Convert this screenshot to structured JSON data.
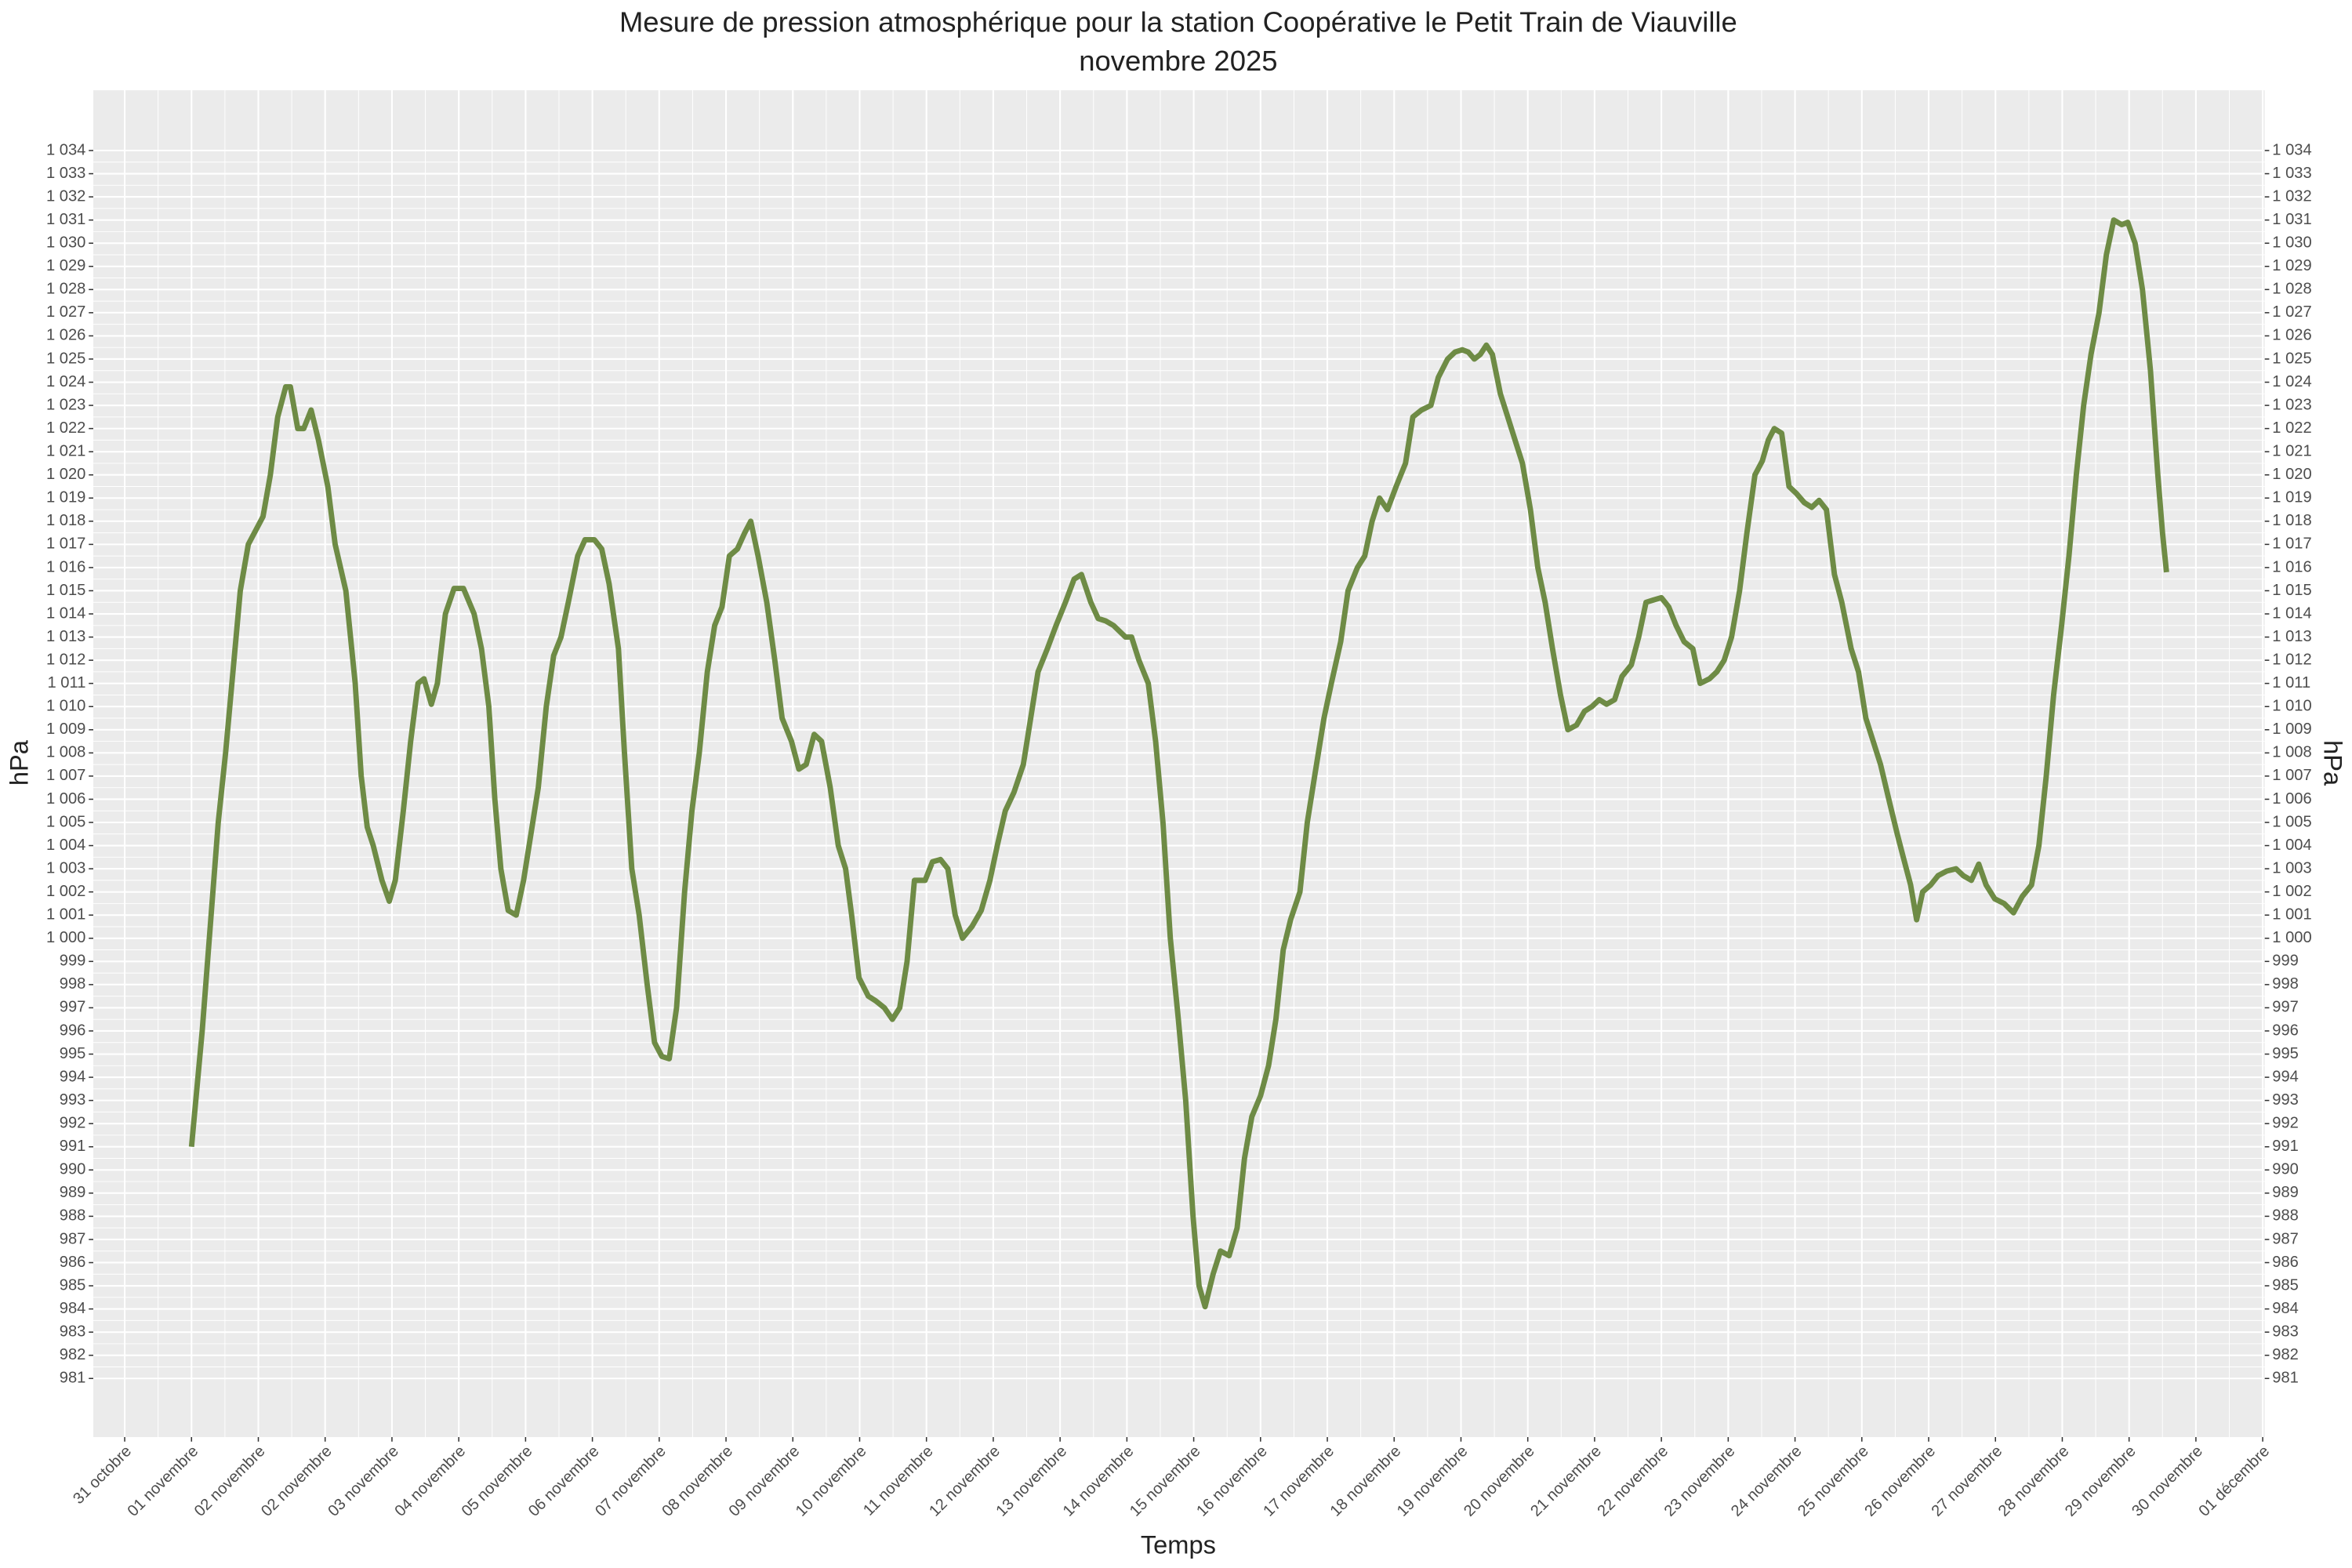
{
  "chart_data": {
    "type": "line",
    "title": "Mesure de pression atmosphérique pour la station Coopérative le Petit Train de Viauville",
    "subtitle": "novembre 2025",
    "xlabel": "Temps",
    "ylabel": "hPa",
    "y2label": "hPa",
    "color": "#6e8b45",
    "grid": true,
    "xlim": [
      -0.47,
      32.03
    ],
    "ylim": [
      978.47,
      1036.6
    ],
    "xticks": [
      {
        "value": 0,
        "label": "31 octobre"
      },
      {
        "value": 1,
        "label": "01 novembre"
      },
      {
        "value": 2,
        "label": "02 novembre"
      },
      {
        "value": 3,
        "label": "02 novembre"
      },
      {
        "value": 4,
        "label": "03 novembre"
      },
      {
        "value": 5,
        "label": "04 novembre"
      },
      {
        "value": 6,
        "label": "05 novembre"
      },
      {
        "value": 7,
        "label": "06 novembre"
      },
      {
        "value": 8,
        "label": "07 novembre"
      },
      {
        "value": 9,
        "label": "08 novembre"
      },
      {
        "value": 10,
        "label": "09 novembre"
      },
      {
        "value": 11,
        "label": "10 novembre"
      },
      {
        "value": 12,
        "label": "11 novembre"
      },
      {
        "value": 13,
        "label": "12 novembre"
      },
      {
        "value": 14,
        "label": "13 novembre"
      },
      {
        "value": 15,
        "label": "14 novembre"
      },
      {
        "value": 16,
        "label": "15 novembre"
      },
      {
        "value": 17,
        "label": "16 novembre"
      },
      {
        "value": 18,
        "label": "17 novembre"
      },
      {
        "value": 19,
        "label": "18 novembre"
      },
      {
        "value": 20,
        "label": "19 novembre"
      },
      {
        "value": 21,
        "label": "20 novembre"
      },
      {
        "value": 22,
        "label": "21 novembre"
      },
      {
        "value": 23,
        "label": "22 novembre"
      },
      {
        "value": 24,
        "label": "23 novembre"
      },
      {
        "value": 25,
        "label": "24 novembre"
      },
      {
        "value": 26,
        "label": "25 novembre"
      },
      {
        "value": 27,
        "label": "26 novembre"
      },
      {
        "value": 28,
        "label": "27 novembre"
      },
      {
        "value": 29,
        "label": "28 novembre"
      },
      {
        "value": 30,
        "label": "29 novembre"
      },
      {
        "value": 31,
        "label": "30 novembre"
      },
      {
        "value": 32,
        "label": "01 décembre"
      }
    ],
    "yticks": [
      981,
      982,
      983,
      984,
      985,
      986,
      987,
      988,
      989,
      990,
      991,
      992,
      993,
      994,
      995,
      996,
      997,
      998,
      999,
      {
        "value": 1000,
        "label": "1 000"
      },
      {
        "value": 1001,
        "label": "1 001"
      },
      {
        "value": 1002,
        "label": "1 002"
      },
      {
        "value": 1003,
        "label": "1 003"
      },
      {
        "value": 1004,
        "label": "1 004"
      },
      {
        "value": 1005,
        "label": "1 005"
      },
      {
        "value": 1006,
        "label": "1 006"
      },
      {
        "value": 1007,
        "label": "1 007"
      },
      {
        "value": 1008,
        "label": "1 008"
      },
      {
        "value": 1009,
        "label": "1 009"
      },
      {
        "value": 1010,
        "label": "1 010"
      },
      {
        "value": 1011,
        "label": "1 011"
      },
      {
        "value": 1012,
        "label": "1 012"
      },
      {
        "value": 1013,
        "label": "1 013"
      },
      {
        "value": 1014,
        "label": "1 014"
      },
      {
        "value": 1015,
        "label": "1 015"
      },
      {
        "value": 1016,
        "label": "1 016"
      },
      {
        "value": 1017,
        "label": "1 017"
      },
      {
        "value": 1018,
        "label": "1 018"
      },
      {
        "value": 1019,
        "label": "1 019"
      },
      {
        "value": 1020,
        "label": "1 020"
      },
      {
        "value": 1021,
        "label": "1 021"
      },
      {
        "value": 1022,
        "label": "1 022"
      },
      {
        "value": 1023,
        "label": "1 023"
      },
      {
        "value": 1024,
        "label": "1 024"
      },
      {
        "value": 1025,
        "label": "1 025"
      },
      {
        "value": 1026,
        "label": "1 026"
      },
      {
        "value": 1027,
        "label": "1 027"
      },
      {
        "value": 1028,
        "label": "1 028"
      },
      {
        "value": 1029,
        "label": "1 029"
      },
      {
        "value": 1030,
        "label": "1 030"
      },
      {
        "value": 1031,
        "label": "1 031"
      },
      {
        "value": 1032,
        "label": "1 032"
      },
      {
        "value": 1033,
        "label": "1 033"
      },
      {
        "value": 1034,
        "label": "1 034"
      }
    ],
    "x": [
      1.0,
      1.16,
      1.28,
      1.4,
      1.51,
      1.62,
      1.73,
      1.85,
      2.07,
      2.18,
      2.29,
      2.41,
      2.48,
      2.59,
      2.68,
      2.79,
      2.9,
      3.04,
      3.15,
      3.31,
      3.45,
      3.54,
      3.63,
      3.72,
      3.85,
      3.96,
      4.05,
      4.17,
      4.28,
      4.39,
      4.48,
      4.59,
      4.68,
      4.8,
      4.93,
      5.07,
      5.23,
      5.34,
      5.45,
      5.54,
      5.63,
      5.74,
      5.86,
      5.97,
      6.08,
      6.19,
      6.31,
      6.42,
      6.53,
      6.64,
      6.78,
      6.89,
      7.03,
      7.14,
      7.25,
      7.39,
      7.48,
      7.59,
      7.7,
      7.82,
      7.93,
      8.04,
      8.15,
      8.26,
      8.38,
      8.49,
      8.6,
      8.72,
      8.83,
      8.94,
      9.05,
      9.17,
      9.28,
      9.37,
      9.48,
      9.61,
      9.73,
      9.84,
      9.98,
      10.09,
      10.2,
      10.32,
      10.43,
      10.56,
      10.68,
      10.79,
      10.88,
      10.99,
      11.13,
      11.24,
      11.37,
      11.49,
      11.6,
      11.71,
      11.82,
      11.98,
      12.09,
      12.21,
      12.32,
      12.43,
      12.54,
      12.68,
      12.82,
      12.95,
      13.06,
      13.18,
      13.31,
      13.45,
      13.56,
      13.67,
      13.81,
      13.94,
      14.08,
      14.21,
      14.32,
      14.46,
      14.57,
      14.68,
      14.8,
      14.98,
      15.07,
      15.18,
      15.32,
      15.43,
      15.54,
      15.65,
      15.77,
      15.88,
      15.99,
      16.08,
      16.17,
      16.29,
      16.4,
      16.53,
      16.65,
      16.76,
      16.87,
      17.0,
      17.12,
      17.23,
      17.34,
      17.45,
      17.59,
      17.7,
      17.81,
      17.95,
      18.06,
      18.2,
      18.31,
      18.45,
      18.56,
      18.67,
      18.78,
      18.9,
      19.03,
      19.17,
      19.28,
      19.41,
      19.55,
      19.66,
      19.8,
      19.91,
      20.02,
      20.11,
      20.2,
      20.29,
      20.38,
      20.47,
      20.59,
      20.7,
      20.81,
      20.92,
      21.04,
      21.15,
      21.26,
      21.37,
      21.49,
      21.6,
      21.73,
      21.85,
      21.96,
      22.07,
      22.18,
      22.3,
      22.41,
      22.55,
      22.66,
      22.77,
      22.88,
      23.0,
      23.11,
      23.22,
      23.34,
      23.47,
      23.58,
      23.72,
      23.83,
      23.94,
      24.05,
      24.17,
      24.28,
      24.4,
      24.51,
      24.6,
      24.69,
      24.8,
      24.91,
      25.02,
      25.14,
      25.25,
      25.36,
      25.47,
      25.59,
      25.7,
      25.84,
      25.95,
      26.06,
      26.17,
      26.28,
      26.42,
      26.53,
      26.62,
      26.73,
      26.82,
      26.91,
      27.03,
      27.14,
      27.27,
      27.41,
      27.52,
      27.64,
      27.75,
      27.86,
      27.99,
      28.13,
      28.27,
      28.4,
      28.54,
      28.65,
      28.76,
      28.87,
      28.99,
      29.1,
      29.21,
      29.32,
      29.43,
      29.55,
      29.66,
      29.77,
      29.89,
      29.98,
      30.09,
      30.2,
      30.32,
      30.43,
      30.5,
      30.56
    ],
    "values": [
      991,
      996,
      1000.5,
      1005,
      1008,
      1011.5,
      1015,
      1017,
      1018.2,
      1020,
      1022.5,
      1023.8,
      1023.8,
      1022,
      1022,
      1022.8,
      1021.5,
      1019.5,
      1017,
      1015,
      1011,
      1007,
      1004.8,
      1004,
      1002.5,
      1001.6,
      1002.5,
      1005.5,
      1008.5,
      1011,
      1011.2,
      1010.1,
      1011,
      1014,
      1015.1,
      1015.1,
      1014,
      1012.5,
      1010,
      1006,
      1003,
      1001.2,
      1001,
      1002.5,
      1004.5,
      1006.5,
      1010,
      1012.2,
      1013,
      1014.5,
      1016.5,
      1017.2,
      1017.2,
      1016.8,
      1015.3,
      1012.5,
      1008,
      1003,
      1001,
      998,
      995.5,
      994.9,
      994.8,
      997,
      1002,
      1005.5,
      1008,
      1011.5,
      1013.5,
      1014.3,
      1016.5,
      1016.8,
      1017.5,
      1018,
      1016.5,
      1014.5,
      1012,
      1009.5,
      1008.5,
      1007.3,
      1007.5,
      1008.8,
      1008.5,
      1006.5,
      1004,
      1003,
      1001,
      998.3,
      997.5,
      997.3,
      997,
      996.5,
      997,
      999,
      1002.5,
      1002.5,
      1003.3,
      1003.4,
      1003,
      1001,
      1000,
      1000.5,
      1001.2,
      1002.5,
      1004,
      1005.5,
      1006.3,
      1007.5,
      1009.5,
      1011.5,
      1012.5,
      1013.5,
      1014.5,
      1015.5,
      1015.7,
      1014.5,
      1013.8,
      1013.7,
      1013.5,
      1013,
      1013,
      1012,
      1011,
      1008.5,
      1005,
      1000,
      996.5,
      993,
      988,
      985,
      984.1,
      985.5,
      986.5,
      986.3,
      987.5,
      990.5,
      992.3,
      993.2,
      994.5,
      996.5,
      999.5,
      1000.8,
      1002,
      1005,
      1007,
      1009.5,
      1011,
      1012.8,
      1015,
      1016,
      1016.5,
      1018,
      1019,
      1018.5,
      1019.5,
      1020.5,
      1022.5,
      1022.8,
      1023,
      1024.2,
      1025,
      1025.3,
      1025.4,
      1025.3,
      1025,
      1025.2,
      1025.6,
      1025.2,
      1023.5,
      1022.5,
      1021.5,
      1020.5,
      1018.5,
      1016,
      1014.5,
      1012.5,
      1010.5,
      1009,
      1009.2,
      1009.8,
      1010,
      1010.3,
      1010.1,
      1010.3,
      1011.3,
      1011.8,
      1013,
      1014.5,
      1014.6,
      1014.7,
      1014.3,
      1013.5,
      1012.8,
      1012.5,
      1011,
      1011.2,
      1011.5,
      1012,
      1013,
      1015,
      1017.5,
      1020,
      1020.6,
      1021.5,
      1022,
      1021.8,
      1019.5,
      1019.2,
      1018.8,
      1018.6,
      1018.9,
      1018.5,
      1015.7,
      1014.5,
      1012.5,
      1011.5,
      1009.5,
      1008.5,
      1007.5,
      1005.8,
      1004.5,
      1003.5,
      1002.3,
      1000.8,
      1002,
      1002.3,
      1002.7,
      1002.9,
      1003,
      1002.7,
      1002.5,
      1003.2,
      1002.3,
      1001.7,
      1001.5,
      1001.1,
      1001.8,
      1002.3,
      1004,
      1007,
      1010.5,
      1013.5,
      1016.5,
      1020,
      1023,
      1025.2,
      1027,
      1029.5,
      1031,
      1030.8,
      1030.9,
      1030,
      1028,
      1024.5,
      1020,
      1017.5,
      1015.8
    ]
  }
}
